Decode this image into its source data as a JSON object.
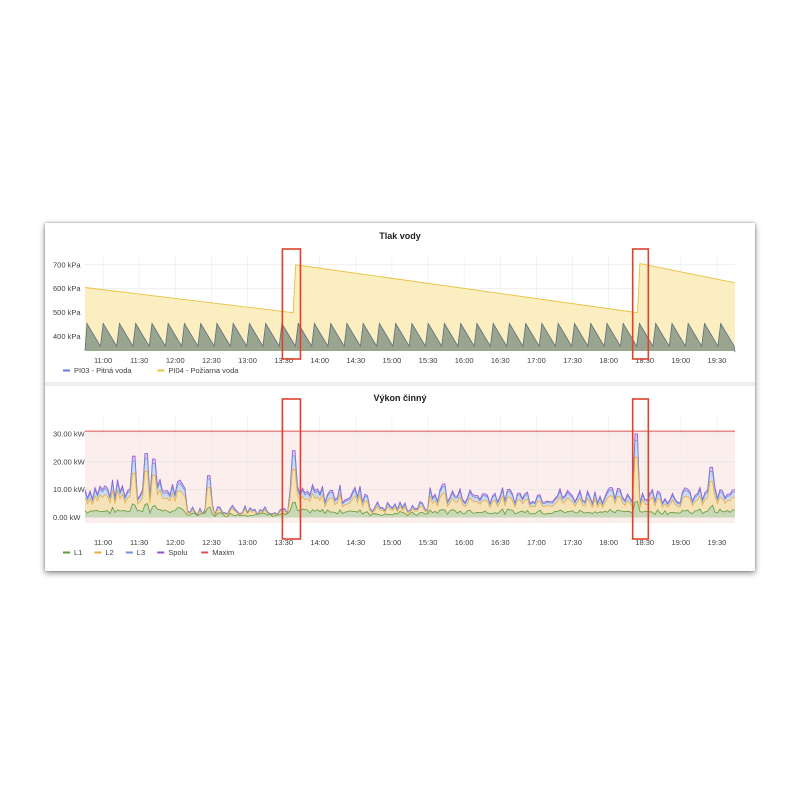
{
  "chart_data": [
    {
      "type": "area",
      "title": "Tlak vody",
      "x_ticks": [
        "11:00",
        "11:30",
        "12:00",
        "12:30",
        "13:00",
        "13:30",
        "14:00",
        "14:30",
        "15:00",
        "15:30",
        "16:00",
        "16:30",
        "17:00",
        "17:30",
        "18:00",
        "18:30",
        "19:00",
        "19:30"
      ],
      "x_range": [
        "10:45",
        "19:45"
      ],
      "y_ticks": [
        "400 kPa",
        "500 kPa",
        "600 kPa",
        "700 kPa"
      ],
      "y_range": [
        340,
        720
      ],
      "y_unit": "kPa",
      "grid": true,
      "legend_position": "bottom-left",
      "series": [
        {
          "name": "PI03 - Pitná voda",
          "color": "#5b7fd6",
          "fill": "#9aa58f",
          "pattern": "sawtooth",
          "min": 360,
          "max": 455,
          "cycles": 40
        },
        {
          "name": "PI04 - Požiarna voda",
          "color": "#e8c13d",
          "fill": "#fbeec0",
          "points": [
            [
              "10:45",
              605
            ],
            [
              "13:38",
              500
            ],
            [
              "13:40",
              700
            ],
            [
              "18:24",
              500
            ],
            [
              "18:26",
              705
            ],
            [
              "19:45",
              625
            ]
          ]
        }
      ],
      "highlight_windows": [
        [
          "13:29",
          "13:44"
        ],
        [
          "18:20",
          "18:33"
        ]
      ]
    },
    {
      "type": "area",
      "title": "Výkon činný",
      "x_ticks": [
        "11:00",
        "11:30",
        "12:00",
        "12:30",
        "13:00",
        "13:30",
        "14:00",
        "14:30",
        "15:00",
        "15:30",
        "16:00",
        "16:30",
        "17:00",
        "17:30",
        "18:00",
        "18:30",
        "19:00",
        "19:30"
      ],
      "x_range": [
        "10:45",
        "19:45"
      ],
      "y_ticks": [
        "0.00 kW",
        "10.00 kW",
        "20.00 kW",
        "30.00 kW"
      ],
      "y_range": [
        -2,
        35
      ],
      "y_unit": "kW",
      "grid": true,
      "legend_position": "bottom-left",
      "series": [
        {
          "name": "L1",
          "color": "#5f9b3f"
        },
        {
          "name": "L2",
          "color": "#e8ae3d"
        },
        {
          "name": "L3",
          "color": "#6d94d6"
        },
        {
          "name": "Spolu",
          "color": "#9350d6"
        },
        {
          "name": "Maxim",
          "color": "#e05050",
          "value": 31
        }
      ],
      "spikes": [
        [
          "11:25",
          22
        ],
        [
          "11:35",
          23
        ],
        [
          "11:42",
          21
        ],
        [
          "12:28",
          15
        ],
        [
          "13:38",
          24
        ],
        [
          "15:43",
          12
        ],
        [
          "18:23",
          30
        ],
        [
          "19:25",
          18
        ]
      ],
      "highlight_windows": [
        [
          "13:29",
          "13:44"
        ],
        [
          "18:20",
          "18:33"
        ]
      ]
    }
  ]
}
